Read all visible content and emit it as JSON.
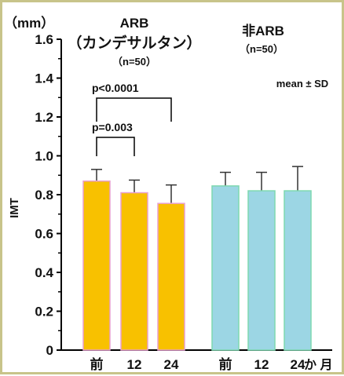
{
  "chart_data": {
    "type": "bar",
    "unit_label": "（mm）",
    "ylabel": "IMT",
    "ylim": [
      0,
      1.6
    ],
    "yticks": [
      "0",
      "0.2",
      "0.4",
      "0.6",
      "0.8",
      "1.0",
      "1.2",
      "1.4",
      "1.6"
    ],
    "legend_note": "mean ± SD",
    "groups": [
      {
        "name": "ARB",
        "subtitle": "（カンデサルタン）",
        "n": "（n=50）",
        "color": "#f8c100",
        "edge_color": "#e8a0d0",
        "categories": [
          "前",
          "12",
          "24"
        ],
        "values": [
          0.87,
          0.81,
          0.755
        ],
        "errors": [
          0.06,
          0.065,
          0.095
        ]
      },
      {
        "name": "非ARB",
        "subtitle": "",
        "n": "（n=50）",
        "color": "#9cd6e4",
        "edge_color": "#7ed8b0",
        "categories": [
          "前",
          "12",
          "24"
        ],
        "values": [
          0.845,
          0.82,
          0.82
        ],
        "errors": [
          0.07,
          0.095,
          0.125
        ]
      }
    ],
    "x_unit_suffix": "か 月",
    "annotations": [
      {
        "text": "p=0.003",
        "from": "前",
        "to": "12",
        "group": "ARB"
      },
      {
        "text": "p<0.0001",
        "from": "前",
        "to": "24",
        "group": "ARB"
      }
    ],
    "grid": false
  }
}
